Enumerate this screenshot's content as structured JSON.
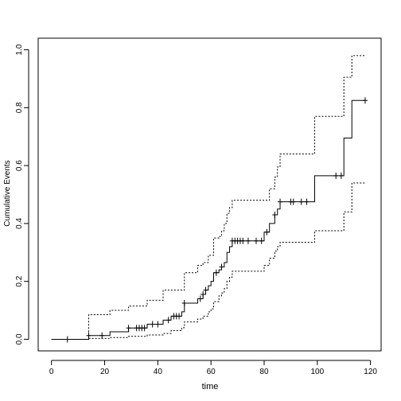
{
  "chart_data": {
    "type": "line",
    "xlabel": "time",
    "ylabel": "Cumulative Events",
    "xlim": [
      -5,
      124
    ],
    "ylim": [
      -0.04,
      1.04
    ],
    "x_ticks": [
      0,
      20,
      40,
      60,
      80,
      100,
      120
    ],
    "x_tick_labels": [
      "0",
      "20",
      "40",
      "60",
      "80",
      "100",
      "120"
    ],
    "y_ticks": [
      0.0,
      0.2,
      0.4,
      0.6,
      0.8,
      1.0
    ],
    "y_tick_labels": [
      "0.0",
      "0.2",
      "0.4",
      "0.6",
      "0.8",
      "1.0"
    ],
    "grid": false,
    "series": [
      {
        "line": "solid",
        "steps": [
          [
            0,
            0
          ],
          [
            14,
            0.013
          ],
          [
            22,
            0.026
          ],
          [
            29,
            0.039
          ],
          [
            36,
            0.052
          ],
          [
            42,
            0.066
          ],
          [
            45,
            0.08
          ],
          [
            49,
            0.095
          ],
          [
            50,
            0.125
          ],
          [
            55,
            0.14
          ],
          [
            57,
            0.155
          ],
          [
            58,
            0.17
          ],
          [
            59,
            0.185
          ],
          [
            60,
            0.2
          ],
          [
            61,
            0.23
          ],
          [
            63,
            0.24
          ],
          [
            64,
            0.25
          ],
          [
            65,
            0.265
          ],
          [
            66,
            0.3
          ],
          [
            67,
            0.32
          ],
          [
            68,
            0.34
          ],
          [
            80,
            0.37
          ],
          [
            82,
            0.4
          ],
          [
            84,
            0.43
          ],
          [
            85,
            0.45
          ],
          [
            86,
            0.475
          ],
          [
            99,
            0.565
          ],
          [
            110,
            0.695
          ],
          [
            113,
            0.825
          ],
          [
            118,
            0.825
          ]
        ],
        "censor_marks": [
          6,
          14,
          19,
          29,
          32,
          33,
          34,
          35,
          38,
          40,
          44,
          46,
          47,
          48,
          50,
          56,
          57,
          58,
          62,
          64,
          68,
          69,
          70,
          71,
          72,
          74,
          77,
          79,
          81,
          84,
          86,
          90,
          91,
          94,
          96,
          107,
          109,
          118
        ]
      },
      {
        "line": "dotted",
        "steps": [
          [
            0,
            0
          ],
          [
            14,
            0.085
          ],
          [
            22,
            0.1
          ],
          [
            29,
            0.115
          ],
          [
            36,
            0.135
          ],
          [
            42,
            0.17
          ],
          [
            50,
            0.23
          ],
          [
            55,
            0.255
          ],
          [
            57,
            0.265
          ],
          [
            59,
            0.29
          ],
          [
            61,
            0.35
          ],
          [
            63,
            0.355
          ],
          [
            64,
            0.375
          ],
          [
            65,
            0.4
          ],
          [
            66,
            0.435
          ],
          [
            67,
            0.455
          ],
          [
            68,
            0.48
          ],
          [
            82,
            0.52
          ],
          [
            84,
            0.56
          ],
          [
            85,
            0.595
          ],
          [
            86,
            0.64
          ],
          [
            99,
            0.77
          ],
          [
            110,
            0.905
          ],
          [
            113,
            0.98
          ],
          [
            118,
            0.98
          ]
        ]
      },
      {
        "line": "dotted",
        "steps": [
          [
            0,
            0
          ],
          [
            14,
            0.003
          ],
          [
            22,
            0.006
          ],
          [
            29,
            0.01
          ],
          [
            36,
            0.015
          ],
          [
            42,
            0.02
          ],
          [
            45,
            0.03
          ],
          [
            49,
            0.04
          ],
          [
            50,
            0.06
          ],
          [
            55,
            0.07
          ],
          [
            57,
            0.08
          ],
          [
            59,
            0.095
          ],
          [
            60,
            0.105
          ],
          [
            61,
            0.13
          ],
          [
            63,
            0.15
          ],
          [
            64,
            0.16
          ],
          [
            65,
            0.175
          ],
          [
            66,
            0.2
          ],
          [
            67,
            0.215
          ],
          [
            68,
            0.235
          ],
          [
            80,
            0.255
          ],
          [
            82,
            0.28
          ],
          [
            84,
            0.305
          ],
          [
            85,
            0.32
          ],
          [
            86,
            0.335
          ],
          [
            99,
            0.375
          ],
          [
            110,
            0.44
          ],
          [
            113,
            0.54
          ],
          [
            118,
            0.54
          ]
        ]
      }
    ]
  }
}
